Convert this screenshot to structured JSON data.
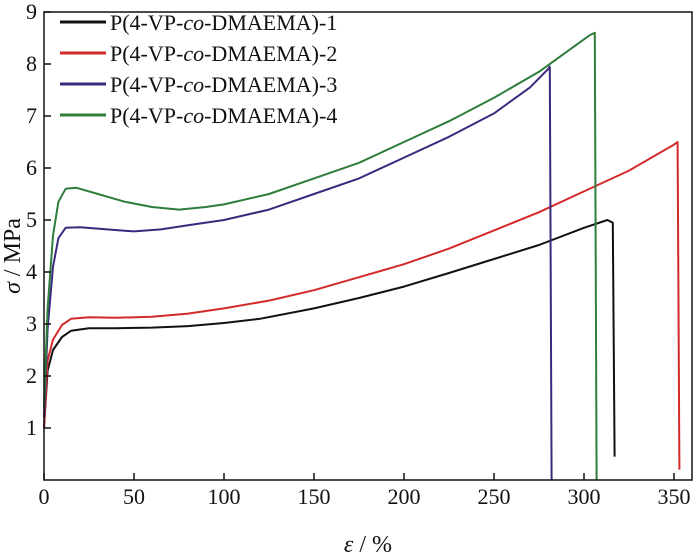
{
  "chart_data": {
    "type": "line",
    "title": "",
    "xlabel": {
      "symbol": "ε",
      "unit": " / %"
    },
    "ylabel": {
      "symbol": "σ",
      "unit": " / MPa"
    },
    "xlim": [
      0,
      360
    ],
    "ylim": [
      0,
      9
    ],
    "xticks": [
      0,
      50,
      100,
      150,
      200,
      250,
      300,
      350
    ],
    "yticks": [
      1,
      2,
      3,
      4,
      5,
      6,
      7,
      8,
      9
    ],
    "grid": false,
    "legend_position": "top-left",
    "series": [
      {
        "name": {
          "prefix": "P(4-VP-",
          "italic": "co",
          "suffix": "-DMAEMA)-1"
        },
        "color": "#111111",
        "points": [
          [
            0,
            1.0
          ],
          [
            2,
            2.1
          ],
          [
            5,
            2.5
          ],
          [
            10,
            2.75
          ],
          [
            15,
            2.87
          ],
          [
            25,
            2.92
          ],
          [
            40,
            2.92
          ],
          [
            60,
            2.93
          ],
          [
            80,
            2.96
          ],
          [
            100,
            3.02
          ],
          [
            120,
            3.1
          ],
          [
            150,
            3.3
          ],
          [
            175,
            3.5
          ],
          [
            200,
            3.72
          ],
          [
            225,
            3.98
          ],
          [
            250,
            4.25
          ],
          [
            275,
            4.52
          ],
          [
            300,
            4.85
          ],
          [
            313,
            5.0
          ],
          [
            316,
            4.95
          ],
          [
            317,
            0.45
          ]
        ]
      },
      {
        "name": {
          "prefix": "P(4-VP-",
          "italic": "co",
          "suffix": "-DMAEMA)-2"
        },
        "color": "#d32a2a",
        "points": [
          [
            0,
            1.0
          ],
          [
            2,
            2.3
          ],
          [
            5,
            2.7
          ],
          [
            10,
            2.98
          ],
          [
            15,
            3.1
          ],
          [
            25,
            3.13
          ],
          [
            40,
            3.12
          ],
          [
            60,
            3.14
          ],
          [
            80,
            3.2
          ],
          [
            100,
            3.3
          ],
          [
            125,
            3.45
          ],
          [
            150,
            3.65
          ],
          [
            175,
            3.9
          ],
          [
            200,
            4.15
          ],
          [
            225,
            4.45
          ],
          [
            250,
            4.8
          ],
          [
            275,
            5.15
          ],
          [
            300,
            5.55
          ],
          [
            325,
            5.95
          ],
          [
            350,
            6.45
          ],
          [
            352,
            6.5
          ],
          [
            353,
            0.2
          ]
        ]
      },
      {
        "name": {
          "prefix": "P(4-VP-",
          "italic": "co",
          "suffix": "-DMAEMA)-3"
        },
        "color": "#3a2a7e",
        "points": [
          [
            0,
            1.2
          ],
          [
            2,
            2.9
          ],
          [
            5,
            4.1
          ],
          [
            8,
            4.65
          ],
          [
            12,
            4.85
          ],
          [
            20,
            4.86
          ],
          [
            35,
            4.82
          ],
          [
            50,
            4.78
          ],
          [
            65,
            4.82
          ],
          [
            80,
            4.9
          ],
          [
            100,
            5.0
          ],
          [
            125,
            5.2
          ],
          [
            150,
            5.5
          ],
          [
            175,
            5.8
          ],
          [
            200,
            6.2
          ],
          [
            225,
            6.6
          ],
          [
            250,
            7.05
          ],
          [
            270,
            7.55
          ],
          [
            280,
            7.9
          ],
          [
            281,
            7.95
          ],
          [
            282,
            0.0
          ]
        ]
      },
      {
        "name": {
          "prefix": "P(4-VP-",
          "italic": "co",
          "suffix": "-DMAEMA)-4"
        },
        "color": "#2e7d3a",
        "points": [
          [
            0,
            1.4
          ],
          [
            2,
            3.3
          ],
          [
            5,
            4.7
          ],
          [
            8,
            5.35
          ],
          [
            12,
            5.6
          ],
          [
            18,
            5.62
          ],
          [
            30,
            5.5
          ],
          [
            45,
            5.35
          ],
          [
            60,
            5.25
          ],
          [
            75,
            5.2
          ],
          [
            90,
            5.25
          ],
          [
            100,
            5.3
          ],
          [
            125,
            5.5
          ],
          [
            150,
            5.8
          ],
          [
            175,
            6.1
          ],
          [
            200,
            6.5
          ],
          [
            225,
            6.9
          ],
          [
            250,
            7.35
          ],
          [
            275,
            7.85
          ],
          [
            295,
            8.35
          ],
          [
            303,
            8.55
          ],
          [
            306,
            8.6
          ],
          [
            307,
            0.0
          ]
        ]
      }
    ]
  }
}
